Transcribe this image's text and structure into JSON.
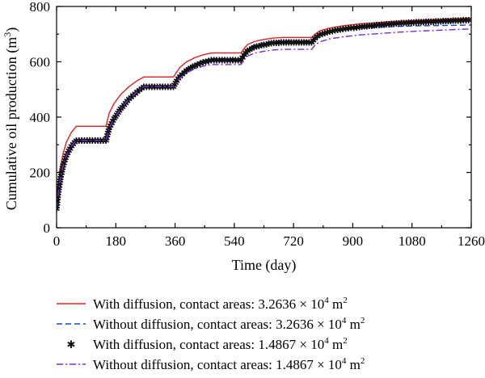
{
  "chart_data": {
    "type": "line",
    "xlabel": "Time (day)",
    "ylabel_main": "Cumulative oil production (m",
    "ylabel_sup": "3",
    "ylabel_tail": ")",
    "xlim": [
      0,
      1260
    ],
    "ylim": [
      0,
      800
    ],
    "x_ticks": [
      0,
      180,
      360,
      540,
      720,
      900,
      1080,
      1260
    ],
    "y_ticks": [
      0,
      200,
      400,
      600,
      800
    ],
    "series": [
      {
        "name": "With diffusion, contact areas: 3.2636 × 10⁴ m²",
        "legend": {
          "text": "With diffusion, contact areas: 3.2636 × 10",
          "sup1": "4",
          "mid": " m",
          "sup2": "2"
        },
        "color": "#e02020",
        "style": "solid",
        "x": [
          0,
          5,
          12,
          20,
          30,
          45,
          60,
          150,
          160,
          175,
          195,
          220,
          245,
          265,
          355,
          365,
          375,
          395,
          420,
          445,
          470,
          560,
          570,
          580,
          600,
          630,
          660,
          690,
          775,
          785,
          800,
          830,
          870,
          920,
          980,
          1040,
          1100,
          1160,
          1220,
          1260
        ],
        "y": [
          80,
          150,
          220,
          270,
          310,
          345,
          367,
          367,
          415,
          450,
          482,
          510,
          532,
          545,
          545,
          563,
          580,
          600,
          615,
          625,
          632,
          632,
          648,
          662,
          673,
          681,
          686,
          688,
          688,
          700,
          712,
          722,
          730,
          737,
          742,
          746,
          750,
          753,
          756,
          758
        ]
      },
      {
        "name": "Without diffusion, contact areas: 3.2636 × 10⁴ m²",
        "legend": {
          "text": "Without diffusion, contact areas: 3.2636 × 10",
          "sup1": "4",
          "mid": " m",
          "sup2": "2"
        },
        "color": "#2040d0",
        "style": "dashed",
        "x": [
          0,
          5,
          12,
          20,
          30,
          45,
          60,
          150,
          160,
          175,
          195,
          220,
          245,
          265,
          355,
          365,
          375,
          395,
          420,
          445,
          470,
          560,
          570,
          580,
          600,
          630,
          660,
          690,
          775,
          785,
          800,
          830,
          870,
          920,
          980,
          1040,
          1100,
          1160,
          1220,
          1260
        ],
        "y": [
          68,
          125,
          180,
          225,
          262,
          295,
          316,
          316,
          360,
          395,
          430,
          465,
          492,
          510,
          510,
          535,
          552,
          575,
          592,
          604,
          612,
          612,
          632,
          647,
          660,
          668,
          674,
          676,
          676,
          688,
          700,
          710,
          716,
          721,
          725,
          728,
          730,
          731,
          732,
          733
        ]
      },
      {
        "name": "With diffusion, contact areas: 1.4867 × 10⁴ m²",
        "legend": {
          "text": "With diffusion, contact areas: 1.4867 × 10",
          "sup1": "4",
          "mid": " m",
          "sup2": "2"
        },
        "color": "#111111",
        "style": "markers",
        "x": [
          0,
          5,
          12,
          20,
          30,
          45,
          60,
          150,
          160,
          175,
          195,
          220,
          245,
          265,
          355,
          365,
          375,
          395,
          420,
          445,
          470,
          560,
          570,
          580,
          600,
          630,
          660,
          690,
          775,
          785,
          800,
          830,
          870,
          920,
          980,
          1040,
          1100,
          1160,
          1220,
          1260
        ],
        "y": [
          68,
          125,
          180,
          225,
          262,
          295,
          316,
          316,
          360,
          395,
          430,
          465,
          492,
          510,
          510,
          532,
          548,
          570,
          586,
          598,
          606,
          606,
          625,
          640,
          653,
          662,
          668,
          670,
          670,
          685,
          698,
          710,
          718,
          726,
          733,
          739,
          743,
          746,
          749,
          751
        ]
      },
      {
        "name": "Without diffusion, contact areas: 1.4867 × 10⁴ m²",
        "legend": {
          "text": "Without diffusion, contact areas: 1.4867 × 10",
          "sup1": "4",
          "mid": " m",
          "sup2": "2"
        },
        "color": "#7a2ad6",
        "style": "dashdot",
        "x": [
          0,
          5,
          12,
          20,
          30,
          45,
          60,
          150,
          160,
          175,
          195,
          220,
          245,
          265,
          355,
          365,
          375,
          395,
          420,
          445,
          470,
          560,
          570,
          580,
          600,
          630,
          660,
          690,
          775,
          785,
          800,
          830,
          870,
          920,
          980,
          1040,
          1100,
          1160,
          1220,
          1260
        ],
        "y": [
          68,
          125,
          180,
          225,
          262,
          295,
          316,
          316,
          360,
          395,
          430,
          465,
          492,
          510,
          510,
          527,
          542,
          560,
          574,
          584,
          590,
          590,
          607,
          620,
          631,
          638,
          643,
          645,
          645,
          660,
          672,
          683,
          690,
          697,
          702,
          707,
          711,
          714,
          717,
          719
        ]
      }
    ]
  }
}
